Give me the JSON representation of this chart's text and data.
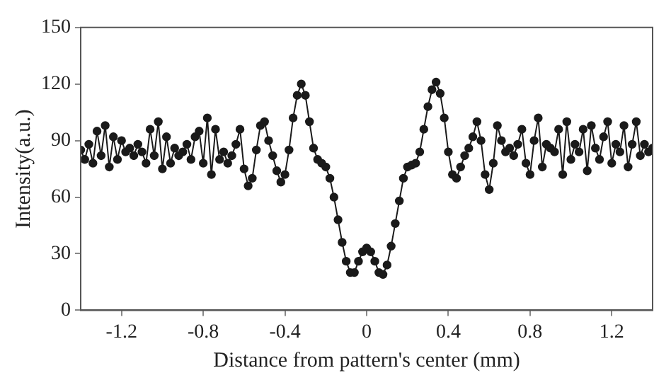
{
  "chart_data": {
    "type": "line",
    "xlabel": "Distance from pattern's center (mm)",
    "ylabel": "Intensity(a.u.)",
    "xlim": [
      -1.4,
      1.4
    ],
    "xticks": [
      -1.2,
      -0.8,
      -0.4,
      0,
      0.4,
      0.8,
      1.2
    ],
    "ylim": [
      0,
      150
    ],
    "yticks": [
      0,
      30,
      60,
      90,
      120,
      150
    ],
    "grid": false,
    "legend": false,
    "marker": "circle",
    "line_style": "solid",
    "series": [
      {
        "color": "#1a1a1a",
        "x": [
          -1.4,
          -1.38,
          -1.36,
          -1.34,
          -1.32,
          -1.3,
          -1.28,
          -1.26,
          -1.24,
          -1.22,
          -1.2,
          -1.18,
          -1.16,
          -1.14,
          -1.12,
          -1.1,
          -1.08,
          -1.06,
          -1.04,
          -1.02,
          -1.0,
          -0.98,
          -0.96,
          -0.94,
          -0.92,
          -0.9,
          -0.88,
          -0.86,
          -0.84,
          -0.82,
          -0.8,
          -0.78,
          -0.76,
          -0.74,
          -0.72,
          -0.7,
          -0.68,
          -0.66,
          -0.64,
          -0.62,
          -0.6,
          -0.58,
          -0.56,
          -0.54,
          -0.52,
          -0.5,
          -0.48,
          -0.46,
          -0.44,
          -0.42,
          -0.4,
          -0.38,
          -0.36,
          -0.34,
          -0.32,
          -0.3,
          -0.28,
          -0.26,
          -0.24,
          -0.22,
          -0.2,
          -0.18,
          -0.16,
          -0.14,
          -0.12,
          -0.1,
          -0.08,
          -0.06,
          -0.04,
          -0.02,
          0,
          0.02,
          0.04,
          0.06,
          0.08,
          0.1,
          0.12,
          0.14,
          0.16,
          0.18,
          0.2,
          0.22,
          0.24,
          0.26,
          0.28,
          0.3,
          0.32,
          0.34,
          0.36,
          0.38,
          0.4,
          0.42,
          0.44,
          0.46,
          0.48,
          0.5,
          0.52,
          0.54,
          0.56,
          0.58,
          0.6,
          0.62,
          0.64,
          0.66,
          0.68,
          0.7,
          0.72,
          0.74,
          0.76,
          0.78,
          0.8,
          0.82,
          0.84,
          0.86,
          0.88,
          0.9,
          0.92,
          0.94,
          0.96,
          0.98,
          1.0,
          1.02,
          1.04,
          1.06,
          1.08,
          1.1,
          1.12,
          1.14,
          1.16,
          1.18,
          1.2,
          1.22,
          1.24,
          1.26,
          1.28,
          1.3,
          1.32,
          1.34,
          1.36,
          1.38,
          1.4
        ],
        "values": [
          85,
          80,
          88,
          78,
          95,
          82,
          98,
          76,
          92,
          80,
          90,
          84,
          86,
          82,
          88,
          84,
          78,
          96,
          82,
          100,
          75,
          92,
          78,
          86,
          82,
          84,
          88,
          80,
          92,
          95,
          78,
          102,
          72,
          96,
          80,
          84,
          78,
          82,
          88,
          96,
          75,
          66,
          70,
          85,
          98,
          100,
          90,
          82,
          74,
          68,
          72,
          85,
          102,
          114,
          120,
          114,
          100,
          86,
          80,
          78,
          76,
          70,
          60,
          48,
          36,
          26,
          20,
          20,
          26,
          31,
          33,
          31,
          26,
          20,
          19,
          24,
          34,
          46,
          58,
          70,
          76,
          77,
          78,
          84,
          96,
          108,
          117,
          121,
          115,
          102,
          84,
          72,
          70,
          76,
          82,
          86,
          92,
          100,
          90,
          72,
          64,
          78,
          98,
          90,
          84,
          86,
          82,
          88,
          96,
          78,
          72,
          90,
          102,
          76,
          88,
          86,
          84,
          96,
          72,
          100,
          80,
          88,
          84,
          96,
          74,
          98,
          86,
          80,
          92,
          100,
          78,
          88,
          84,
          98,
          76,
          88,
          100,
          82,
          88,
          84,
          86
        ]
      }
    ]
  }
}
